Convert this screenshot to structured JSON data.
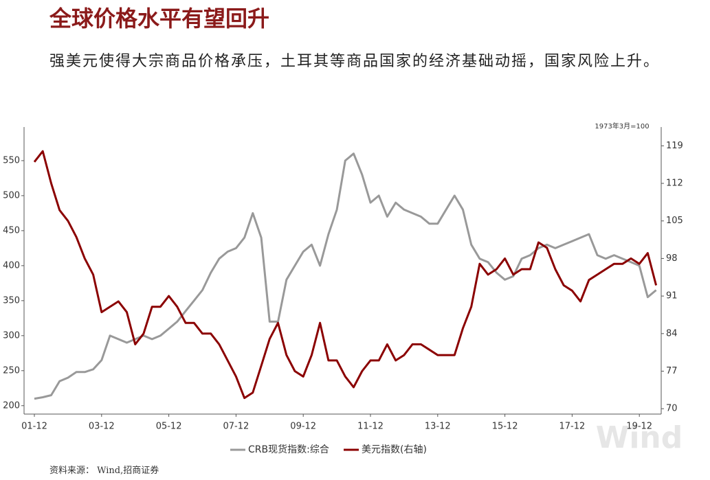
{
  "title": "全球价格水平有望回升",
  "subtitle": "强美元使得大宗商品价格承压，土耳其等商品国家的经济基础动摇，国家风险上升。",
  "source": "资料来源： Wind,招商证券",
  "chart_data": {
    "type": "line",
    "unit_note": "1973年3月=100",
    "watermark": "Wind",
    "x": [
      "01-12",
      "02-03",
      "02-06",
      "02-09",
      "02-12",
      "03-03",
      "03-06",
      "03-09",
      "03-12",
      "04-03",
      "04-06",
      "04-09",
      "04-12",
      "05-03",
      "05-06",
      "05-09",
      "05-12",
      "06-03",
      "06-06",
      "06-09",
      "06-12",
      "07-03",
      "07-06",
      "07-09",
      "07-12",
      "08-03",
      "08-06",
      "08-09",
      "08-12",
      "09-03",
      "09-06",
      "09-09",
      "09-12",
      "10-03",
      "10-06",
      "10-09",
      "10-12",
      "11-03",
      "11-06",
      "11-09",
      "11-12",
      "12-03",
      "12-06",
      "12-09",
      "12-12",
      "13-03",
      "13-06",
      "13-09",
      "13-12",
      "14-03",
      "14-06",
      "14-09",
      "14-12",
      "15-03",
      "15-06",
      "15-09",
      "15-12",
      "16-03",
      "16-06",
      "16-09",
      "16-12",
      "17-03",
      "17-06",
      "17-09",
      "17-12",
      "18-03",
      "18-06",
      "18-09",
      "18-12",
      "19-03",
      "19-06",
      "19-09",
      "19-12",
      "20-03",
      "20-06"
    ],
    "series": [
      {
        "name": "CRB现货指数:综合",
        "color": "#999999",
        "values": [
          210,
          212,
          215,
          235,
          240,
          248,
          248,
          252,
          265,
          300,
          295,
          290,
          295,
          300,
          295,
          300,
          310,
          320,
          335,
          350,
          365,
          390,
          410,
          420,
          425,
          440,
          475,
          440,
          320,
          320,
          380,
          400,
          420,
          430,
          400,
          445,
          480,
          550,
          560,
          530,
          490,
          500,
          470,
          490,
          480,
          475,
          470,
          460,
          460,
          480,
          500,
          480,
          430,
          410,
          405,
          390,
          380,
          385,
          410,
          415,
          425,
          430,
          425,
          430,
          435,
          440,
          445,
          415,
          410,
          415,
          410,
          405,
          400,
          355,
          365
        ]
      },
      {
        "name": "美元指数(右轴)",
        "color": "#8b0000",
        "axis": "y2",
        "values": [
          116,
          118,
          112,
          107,
          105,
          102,
          98,
          95,
          88,
          89,
          90,
          88,
          82,
          84,
          89,
          89,
          91,
          89,
          86,
          86,
          84,
          84,
          82,
          79,
          76,
          72,
          73,
          78,
          83,
          86,
          80,
          77,
          76,
          80,
          86,
          79,
          79,
          76,
          74,
          77,
          79,
          79,
          82,
          79,
          80,
          82,
          82,
          81,
          80,
          80,
          80,
          85,
          89,
          97,
          95,
          96,
          98,
          95,
          96,
          96,
          101,
          100,
          96,
          93,
          92,
          90,
          94,
          95,
          96,
          97,
          97,
          98,
          97,
          99,
          93
        ]
      }
    ],
    "xticks": [
      "01-12",
      "03-12",
      "05-12",
      "07-12",
      "09-12",
      "11-12",
      "13-12",
      "15-12",
      "17-12",
      "19-12"
    ],
    "ylim": [
      188,
      598
    ],
    "yticks": [
      200,
      250,
      300,
      350,
      400,
      450,
      500,
      550
    ],
    "y2lim": [
      69,
      122.5
    ],
    "y2ticks": [
      70,
      77,
      84,
      91,
      98,
      105,
      112,
      119
    ]
  }
}
